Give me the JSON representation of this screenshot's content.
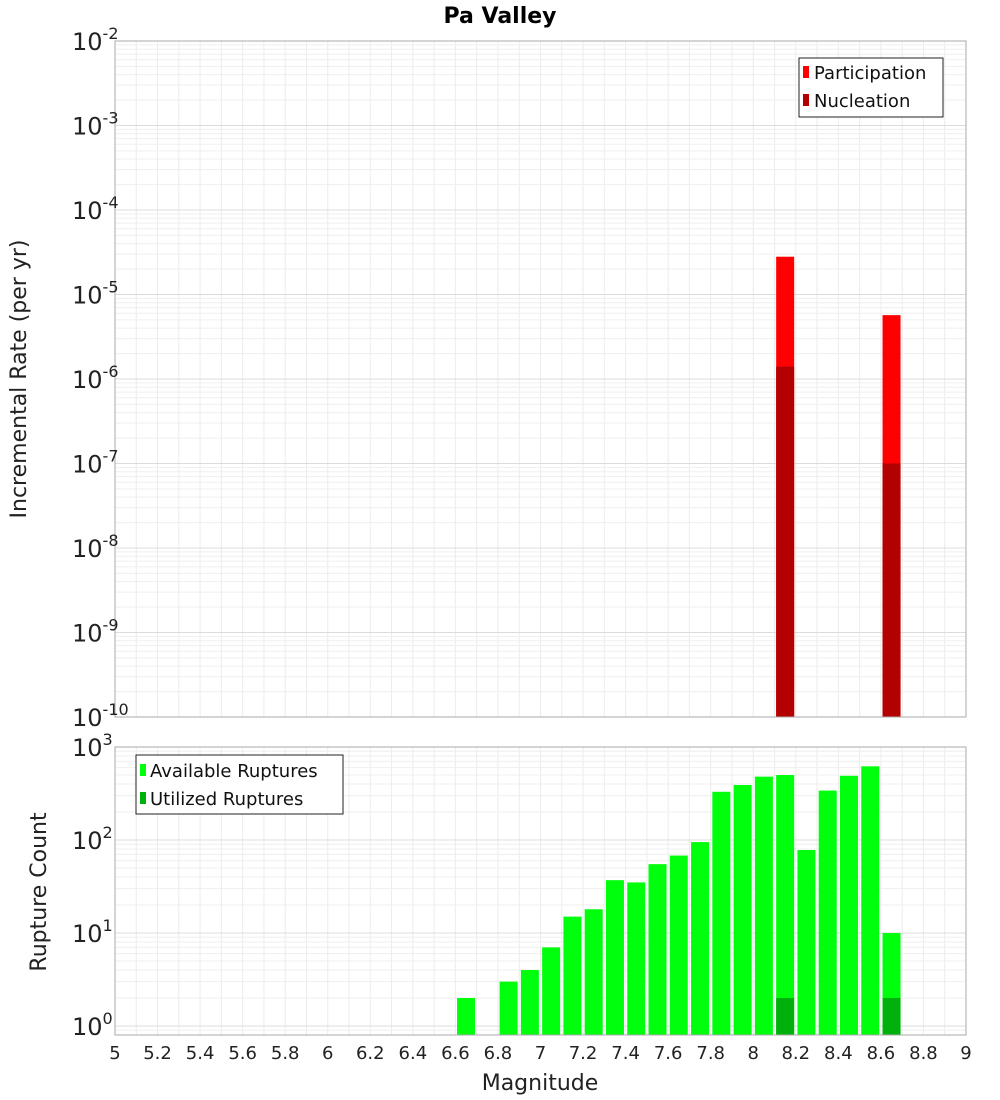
{
  "chart_data": [
    {
      "type": "bar",
      "title": "Pa Valley",
      "xlabel": "",
      "ylabel": "Incremental Rate (per yr)",
      "yscale": "log",
      "ylim": [
        1e-10,
        0.01
      ],
      "xlim": [
        5,
        9
      ],
      "ytick_labels": [
        {
          "base": "10",
          "exp": "-2"
        },
        {
          "base": "10",
          "exp": "-3"
        },
        {
          "base": "10",
          "exp": "-4"
        },
        {
          "base": "10",
          "exp": "-5"
        },
        {
          "base": "10",
          "exp": "-6"
        },
        {
          "base": "10",
          "exp": "-7"
        },
        {
          "base": "10",
          "exp": "-8"
        },
        {
          "base": "10",
          "exp": "-9"
        },
        {
          "base": "10",
          "exp": "-10"
        }
      ],
      "grid": true,
      "legend_position": "top-right",
      "series": [
        {
          "name": "Participation",
          "color": "#ff0000",
          "x": [
            8.15,
            8.65
          ],
          "values": [
            2.8e-05,
            5.7e-06
          ]
        },
        {
          "name": "Nucleation",
          "color": "#b30000",
          "x": [
            8.15,
            8.65
          ],
          "values": [
            1.4e-06,
            1e-07
          ]
        }
      ]
    },
    {
      "type": "bar",
      "title": "",
      "xlabel": "Magnitude",
      "ylabel": "Rupture Count",
      "yscale": "log",
      "ylim": [
        0.8,
        1000
      ],
      "xlim": [
        5,
        9
      ],
      "xticks": [
        "5",
        "5.2",
        "5.4",
        "5.6",
        "5.8",
        "6",
        "6.2",
        "6.4",
        "6.6",
        "6.8",
        "7",
        "7.2",
        "7.4",
        "7.6",
        "7.8",
        "8",
        "8.2",
        "8.4",
        "8.6",
        "8.8",
        "9"
      ],
      "ytick_labels": [
        {
          "base": "10",
          "exp": "3"
        },
        {
          "base": "10",
          "exp": "2"
        },
        {
          "base": "10",
          "exp": "1"
        },
        {
          "base": "10",
          "exp": "0"
        }
      ],
      "grid": true,
      "legend_position": "top-left",
      "series": [
        {
          "name": "Available Ruptures",
          "color": "#00ff0c",
          "x": [
            6.65,
            6.85,
            6.95,
            7.05,
            7.15,
            7.25,
            7.35,
            7.45,
            7.55,
            7.65,
            7.75,
            7.85,
            7.95,
            8.05,
            8.15,
            8.25,
            8.35,
            8.45,
            8.55,
            8.65
          ],
          "values": [
            2,
            3,
            4,
            7,
            15,
            18,
            37,
            35,
            55,
            68,
            95,
            330,
            390,
            480,
            500,
            78,
            340,
            490,
            620,
            10
          ]
        },
        {
          "name": "Utilized Ruptures",
          "color": "#00b00c",
          "x": [
            8.15,
            8.65
          ],
          "values": [
            2,
            2
          ]
        }
      ]
    }
  ]
}
